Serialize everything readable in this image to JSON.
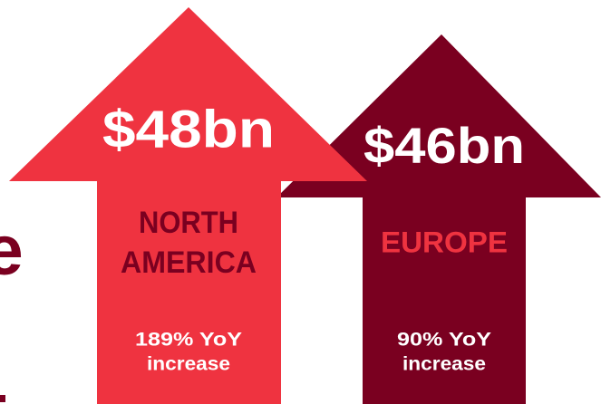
{
  "fragment": "e",
  "items": [
    {
      "value": "$48bn",
      "region": [
        "NORTH",
        "AMERICA"
      ],
      "change": [
        "189% YoY",
        "increase"
      ]
    },
    {
      "value": "$46bn",
      "region": [
        "EUROPE"
      ],
      "change": [
        "90% YoY",
        "increase"
      ]
    }
  ]
}
